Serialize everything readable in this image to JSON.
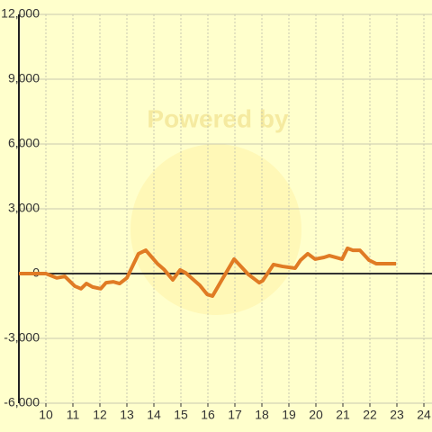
{
  "chart_data": {
    "type": "line",
    "watermark": "Powered by",
    "x": [
      9,
      10,
      10.4,
      10.7,
      11.07,
      11.3,
      11.5,
      11.73,
      12.03,
      12.23,
      12.5,
      12.73,
      13.0,
      13.43,
      13.7,
      14.13,
      14.37,
      14.7,
      14.97,
      15.17,
      15.7,
      15.97,
      16.17,
      16.5,
      16.97,
      17.5,
      17.9,
      18.03,
      18.43,
      18.77,
      19.23,
      19.43,
      19.7,
      19.97,
      20.3,
      20.5,
      20.97,
      21.17,
      21.37,
      21.63,
      21.97,
      22.23,
      22.97
    ],
    "series": [
      {
        "color": "#e07b24",
        "values": [
          0,
          0,
          -200,
          -130,
          -580,
          -700,
          -460,
          -620,
          -700,
          -420,
          -380,
          -460,
          -200,
          920,
          1080,
          460,
          200,
          -290,
          170,
          40,
          -540,
          -960,
          -1040,
          -330,
          670,
          -40,
          -420,
          -330,
          420,
          330,
          250,
          620,
          920,
          670,
          750,
          830,
          670,
          1170,
          1080,
          1080,
          620,
          460,
          460
        ]
      }
    ],
    "xlim": [
      9,
      24.3
    ],
    "xticks": [
      10,
      11,
      12,
      13,
      14,
      15,
      16,
      17,
      18,
      19,
      20,
      21,
      22,
      23,
      24
    ],
    "ylim": [
      -6000,
      12000
    ],
    "yticks": [
      {
        "value": -6000,
        "label": "-6,000"
      },
      {
        "value": -3000,
        "label": "-3,000"
      },
      0,
      {
        "value": 3000,
        "label": "3,000"
      },
      {
        "value": 6000,
        "label": "6,000"
      },
      {
        "value": 9000,
        "label": "9,000"
      },
      {
        "value": 12000,
        "label": "12,000"
      }
    ],
    "grid": true
  }
}
